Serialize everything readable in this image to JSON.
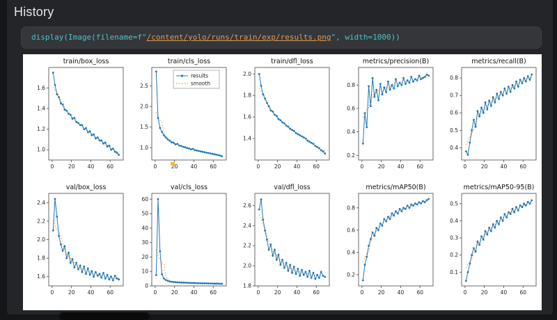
{
  "header": {
    "title": "History"
  },
  "code_cell": {
    "tokens": [
      {
        "text": "display(Image(filename=f\"",
        "type": "code"
      },
      {
        "text": "/content/yolo/runs/train/exp/results.png",
        "type": "string-link"
      },
      {
        "text": "\", width=",
        "type": "code"
      },
      {
        "text": "1000",
        "type": "number"
      },
      {
        "text": "))",
        "type": "code"
      }
    ]
  },
  "legend": {
    "results": "results",
    "smooth": "smooth"
  },
  "plot_style": {
    "line_color": "#1f77b4",
    "smooth_color": "#ff8c1a",
    "axis_color": "#444444",
    "text_color": "#222222",
    "background": "#ffffff"
  },
  "epochs": [
    1,
    3,
    5,
    7,
    9,
    11,
    13,
    15,
    17,
    19,
    21,
    23,
    25,
    27,
    29,
    31,
    33,
    35,
    37,
    39,
    41,
    43,
    45,
    47,
    49,
    51,
    53,
    55,
    57,
    59,
    61,
    63,
    65,
    67,
    69
  ],
  "chart_data": [
    {
      "id": "train-box-loss",
      "type": "line",
      "title": "train/box_loss",
      "xlabel": "",
      "ylabel": "",
      "xlim": [
        -3.5,
        73.5
      ],
      "xticks": [
        0,
        20,
        40,
        60
      ],
      "ylim": [
        0.9,
        1.8
      ],
      "yticks": [
        "1.0",
        "1.2",
        "1.4",
        "1.6"
      ],
      "legend": false,
      "values": [
        1.75,
        1.63,
        1.54,
        1.51,
        1.45,
        1.44,
        1.39,
        1.38,
        1.35,
        1.34,
        1.3,
        1.31,
        1.27,
        1.26,
        1.24,
        1.24,
        1.2,
        1.21,
        1.17,
        1.18,
        1.14,
        1.15,
        1.11,
        1.12,
        1.09,
        1.09,
        1.06,
        1.07,
        1.03,
        1.04,
        1.0,
        1.01,
        0.98,
        0.97,
        0.95
      ]
    },
    {
      "id": "train-cls-loss",
      "type": "line",
      "title": "train/cls_loss",
      "xlabel": "",
      "ylabel": "",
      "xlim": [
        -3.5,
        73.5
      ],
      "xticks": [
        0,
        20,
        40,
        60
      ],
      "ylim": [
        0.7,
        2.95
      ],
      "yticks": [
        "1.0",
        "1.5",
        "2.0",
        "2.5"
      ],
      "legend": true,
      "values": [
        2.85,
        1.72,
        1.48,
        1.38,
        1.3,
        1.25,
        1.2,
        1.17,
        1.13,
        1.12,
        1.08,
        1.09,
        1.05,
        1.04,
        1.02,
        1.01,
        0.99,
        0.98,
        0.96,
        0.97,
        0.94,
        0.93,
        0.92,
        0.91,
        0.9,
        0.89,
        0.88,
        0.87,
        0.86,
        0.85,
        0.84,
        0.83,
        0.82,
        0.81,
        0.79
      ]
    },
    {
      "id": "train-dfl-loss",
      "type": "line",
      "title": "train/dfl_loss",
      "xlabel": "",
      "ylabel": "",
      "xlim": [
        -3.5,
        73.5
      ],
      "xticks": [
        0,
        20,
        40,
        60
      ],
      "ylim": [
        1.2,
        2.06
      ],
      "yticks": [
        "1.4",
        "1.6",
        "1.8",
        "2.0"
      ],
      "legend": false,
      "values": [
        2.0,
        1.89,
        1.81,
        1.77,
        1.73,
        1.7,
        1.66,
        1.65,
        1.62,
        1.61,
        1.58,
        1.57,
        1.55,
        1.54,
        1.52,
        1.51,
        1.49,
        1.48,
        1.47,
        1.45,
        1.44,
        1.43,
        1.42,
        1.41,
        1.4,
        1.38,
        1.37,
        1.36,
        1.35,
        1.33,
        1.32,
        1.31,
        1.29,
        1.28,
        1.26
      ]
    },
    {
      "id": "metrics-precision-b",
      "type": "line",
      "title": "metrics/precision(B)",
      "xlabel": "",
      "ylabel": "",
      "xlim": [
        -3.5,
        73.5
      ],
      "xticks": [
        0,
        20,
        40,
        60
      ],
      "ylim": [
        0.16,
        0.95
      ],
      "yticks": [
        "0.2",
        "0.4",
        "0.6",
        "0.8"
      ],
      "legend": false,
      "values": [
        0.3,
        0.56,
        0.44,
        0.79,
        0.62,
        0.86,
        0.7,
        0.76,
        0.67,
        0.81,
        0.72,
        0.78,
        0.74,
        0.83,
        0.76,
        0.8,
        0.77,
        0.85,
        0.79,
        0.82,
        0.8,
        0.86,
        0.81,
        0.84,
        0.82,
        0.87,
        0.83,
        0.85,
        0.84,
        0.88,
        0.85,
        0.86,
        0.87,
        0.89,
        0.88
      ]
    },
    {
      "id": "metrics-recall-b",
      "type": "line",
      "title": "metrics/recall(B)",
      "xlabel": "",
      "ylabel": "",
      "xlim": [
        -3.5,
        73.5
      ],
      "xticks": [
        0,
        20,
        40,
        60
      ],
      "ylim": [
        0.33,
        0.86
      ],
      "yticks": [
        "0.4",
        "0.5",
        "0.6",
        "0.7",
        "0.8"
      ],
      "legend": false,
      "values": [
        0.38,
        0.36,
        0.43,
        0.5,
        0.56,
        0.52,
        0.61,
        0.58,
        0.63,
        0.6,
        0.66,
        0.62,
        0.67,
        0.64,
        0.69,
        0.66,
        0.71,
        0.68,
        0.72,
        0.7,
        0.74,
        0.71,
        0.75,
        0.72,
        0.76,
        0.74,
        0.78,
        0.75,
        0.79,
        0.77,
        0.8,
        0.78,
        0.81,
        0.79,
        0.82
      ]
    },
    {
      "id": "val-box-loss",
      "type": "line",
      "title": "val/box_loss",
      "xlabel": "",
      "ylabel": "",
      "xlim": [
        -3.5,
        73.5
      ],
      "xticks": [
        0,
        20,
        40,
        60
      ],
      "ylim": [
        1.5,
        2.5
      ],
      "yticks": [
        "1.6",
        "1.8",
        "2.0",
        "2.2",
        "2.4"
      ],
      "legend": false,
      "values": [
        2.1,
        2.44,
        2.25,
        2.04,
        1.95,
        1.88,
        1.93,
        1.8,
        1.86,
        1.75,
        1.79,
        1.7,
        1.75,
        1.68,
        1.72,
        1.65,
        1.71,
        1.63,
        1.69,
        1.62,
        1.66,
        1.6,
        1.65,
        1.61,
        1.63,
        1.59,
        1.64,
        1.58,
        1.62,
        1.57,
        1.6,
        1.56,
        1.61,
        1.58,
        1.57
      ]
    },
    {
      "id": "val-cls-loss",
      "type": "line",
      "title": "val/cls_loss",
      "xlabel": "",
      "ylabel": "",
      "xlim": [
        -3.5,
        73.5
      ],
      "xticks": [
        0,
        20,
        40,
        60
      ],
      "ylim": [
        0,
        64
      ],
      "yticks": [
        "0",
        "10",
        "20",
        "30",
        "40",
        "50",
        "60"
      ],
      "legend": false,
      "values": [
        7.5,
        60.0,
        24.0,
        8.0,
        5.2,
        4.1,
        3.6,
        3.1,
        2.9,
        2.7,
        2.6,
        2.5,
        2.4,
        2.3,
        2.3,
        2.2,
        2.2,
        2.1,
        2.1,
        2.0,
        2.0,
        1.9,
        1.9,
        1.9,
        1.8,
        1.8,
        1.8,
        1.7,
        1.7,
        1.7,
        1.6,
        1.6,
        1.6,
        1.5,
        1.5
      ]
    },
    {
      "id": "val-dfl-loss",
      "type": "line",
      "title": "val/dfl_loss",
      "xlabel": "",
      "ylabel": "",
      "xlim": [
        -3.5,
        73.5
      ],
      "xticks": [
        0,
        20,
        40,
        60
      ],
      "ylim": [
        1.8,
        2.72
      ],
      "yticks": [
        "1.8",
        "2.0",
        "2.2",
        "2.4",
        "2.6"
      ],
      "legend": false,
      "values": [
        2.56,
        2.66,
        2.46,
        2.35,
        2.26,
        2.16,
        2.21,
        2.1,
        2.16,
        2.06,
        2.11,
        2.01,
        2.06,
        1.98,
        2.03,
        1.95,
        2.01,
        1.93,
        1.99,
        1.92,
        1.97,
        1.9,
        1.96,
        1.91,
        1.94,
        1.89,
        1.95,
        1.88,
        1.93,
        1.87,
        1.91,
        1.88,
        1.94,
        1.9,
        1.89
      ]
    },
    {
      "id": "metrics-map50-b",
      "type": "line",
      "title": "metrics/mAP50(B)",
      "xlabel": "",
      "ylabel": "",
      "xlim": [
        -3.5,
        73.5
      ],
      "xticks": [
        0,
        20,
        40,
        60
      ],
      "ylim": [
        0.1,
        0.93
      ],
      "yticks": [
        "0.2",
        "0.4",
        "0.6",
        "0.8"
      ],
      "legend": false,
      "values": [
        0.15,
        0.29,
        0.36,
        0.46,
        0.52,
        0.58,
        0.55,
        0.62,
        0.6,
        0.66,
        0.64,
        0.7,
        0.68,
        0.72,
        0.7,
        0.75,
        0.73,
        0.77,
        0.75,
        0.79,
        0.77,
        0.8,
        0.79,
        0.82,
        0.8,
        0.83,
        0.82,
        0.84,
        0.83,
        0.85,
        0.84,
        0.86,
        0.85,
        0.87,
        0.88
      ]
    },
    {
      "id": "metrics-map50-95-b",
      "type": "line",
      "title": "metrics/mAP50-95(B)",
      "xlabel": "",
      "ylabel": "",
      "xlim": [
        -3.5,
        73.5
      ],
      "xticks": [
        0,
        20,
        40,
        60
      ],
      "ylim": [
        0.02,
        0.56
      ],
      "yticks": [
        "0.1",
        "0.2",
        "0.3",
        "0.4",
        "0.5"
      ],
      "legend": false,
      "values": [
        0.05,
        0.1,
        0.15,
        0.2,
        0.24,
        0.22,
        0.28,
        0.26,
        0.31,
        0.29,
        0.34,
        0.32,
        0.36,
        0.34,
        0.38,
        0.36,
        0.4,
        0.38,
        0.42,
        0.4,
        0.44,
        0.42,
        0.45,
        0.44,
        0.47,
        0.45,
        0.48,
        0.46,
        0.49,
        0.48,
        0.5,
        0.49,
        0.51,
        0.5,
        0.52
      ]
    }
  ]
}
